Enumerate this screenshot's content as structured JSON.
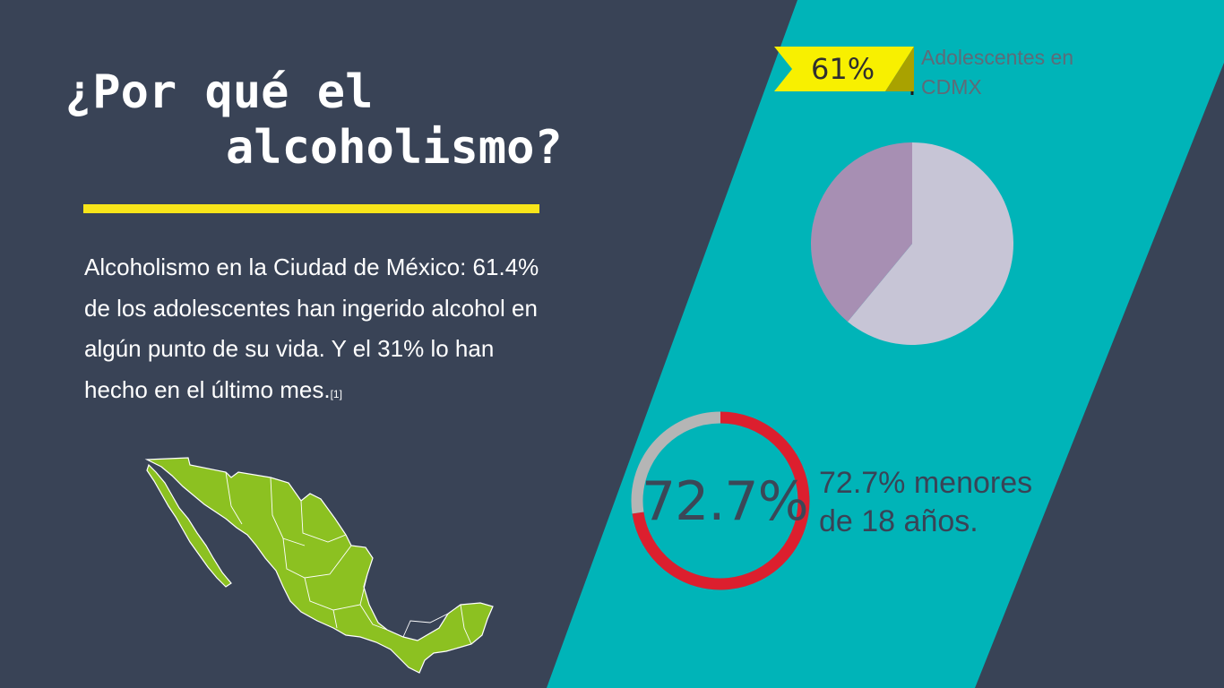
{
  "slide": {
    "title_line1": "¿Por qué el",
    "title_line2": "alcoholismo?",
    "body_text": "Alcoholismo en la Ciudad de México: 61.4% de los adolescentes han ingerido alcohol en algún punto de su vida. Y el 31% lo han hecho en el último mes.",
    "footnote": "[1]"
  },
  "colors": {
    "background": "#394356",
    "band": "#00b4b8",
    "accent_yellow": "#f8e51a",
    "pie_main": "#c7c5d6",
    "pie_other": "#a78fb3",
    "donut_main": "#dc1f2e",
    "donut_rest": "#b5b5b5",
    "map": "#8cc121"
  },
  "chart_data": [
    {
      "type": "pie",
      "slices": [
        {
          "name": "",
          "value": 61
        },
        {
          "name": "",
          "value": 39
        }
      ],
      "callout_value": "61%",
      "callout_label": "Adolescentes en CDMX"
    },
    {
      "type": "pie",
      "variant": "donut",
      "slices": [
        {
          "name": "",
          "value": 72.7
        },
        {
          "name": "",
          "value": 27.3
        }
      ],
      "center_label": "72.7%",
      "description": "72.7% menores de 18 años."
    }
  ],
  "icons": [
    "mexico-map-icon"
  ]
}
